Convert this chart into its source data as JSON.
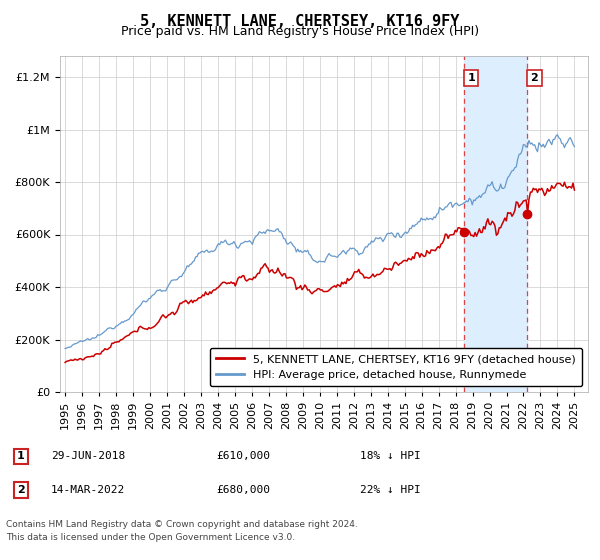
{
  "title": "5, KENNETT LANE, CHERTSEY, KT16 9FY",
  "subtitle": "Price paid vs. HM Land Registry's House Price Index (HPI)",
  "ylabel_ticks": [
    0,
    200000,
    400000,
    600000,
    800000,
    1000000,
    1200000
  ],
  "ylim": [
    0,
    1280000
  ],
  "xlim_start": 1994.7,
  "xlim_end": 2025.8,
  "sale1_year": 2018.49,
  "sale1_price": 610000,
  "sale1_label": "1",
  "sale1_date": "29-JUN-2018",
  "sale1_pct": "18%",
  "sale2_year": 2022.21,
  "sale2_price": 680000,
  "sale2_label": "2",
  "sale2_date": "14-MAR-2022",
  "sale2_pct": "22%",
  "line_color_red": "#cc0000",
  "line_color_blue": "#6699cc",
  "shade_color": "#ddeeff",
  "dashed_color": "#dd4444",
  "grid_color": "#cccccc",
  "background_color": "#ffffff",
  "legend_label_red": "5, KENNETT LANE, CHERTSEY, KT16 9FY (detached house)",
  "legend_label_blue": "HPI: Average price, detached house, Runnymede",
  "footer1": "Contains HM Land Registry data © Crown copyright and database right 2024.",
  "footer2": "This data is licensed under the Open Government Licence v3.0.",
  "title_fontsize": 11,
  "subtitle_fontsize": 9,
  "tick_fontsize": 8,
  "legend_fontsize": 8
}
